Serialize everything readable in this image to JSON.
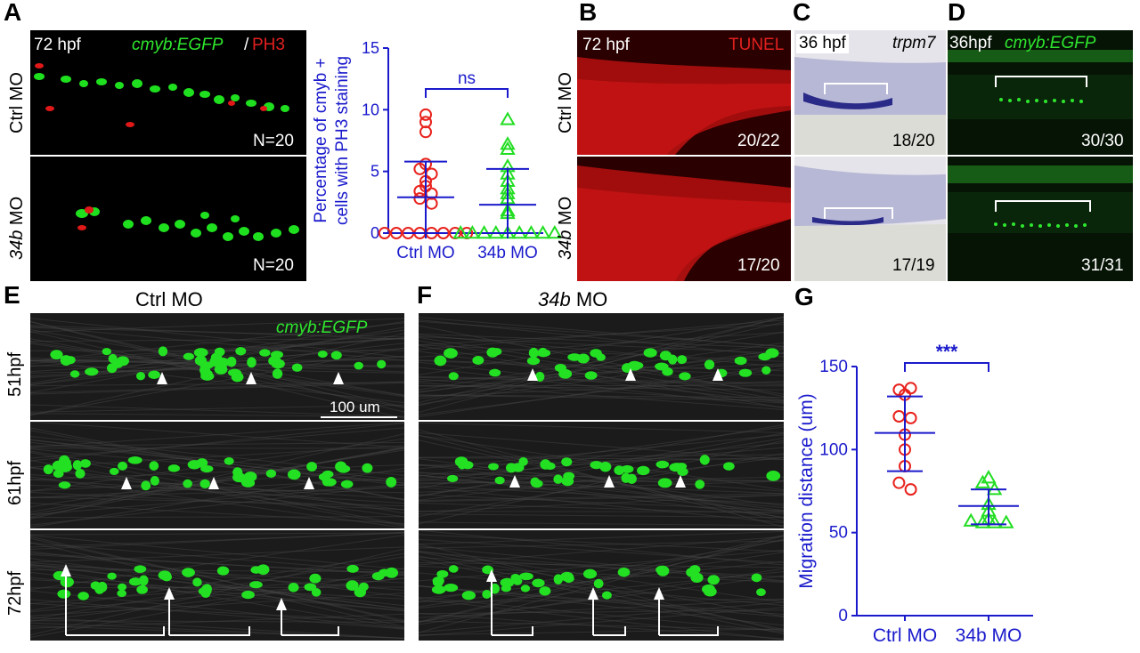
{
  "panels": {
    "A": {
      "letter": "A",
      "time": "72 hpf",
      "marker1": "cmyb:EGFP",
      "slash": "/",
      "marker2": "PH3",
      "row1_label": "Ctrl MO",
      "row2_label_italic": "34b",
      "row2_label_rest": " MO",
      "n1": "N=20",
      "n2": "N=20"
    },
    "B": {
      "letter": "B",
      "time": "72 hpf",
      "stain": "TUNEL",
      "row1_label": "Ctrl MO",
      "row2_label_italic": "34b",
      "row2_label_rest": " MO",
      "count1": "20/22",
      "count2": "17/20"
    },
    "C": {
      "letter": "C",
      "time": "36 hpf",
      "probe": "trpm7",
      "count1": "18/20",
      "count2": "17/19"
    },
    "D": {
      "letter": "D",
      "time": "36hpf",
      "marker": "cmyb:EGFP",
      "count1": "30/30",
      "count2": "31/31"
    },
    "E": {
      "letter": "E",
      "title": "Ctrl MO",
      "marker": "cmyb:EGFP",
      "scale": "100 um",
      "rows": [
        "51hpf",
        "61hpf",
        "72hpf"
      ]
    },
    "F": {
      "letter": "F",
      "title_italic": "34b",
      "title_rest": "  MO"
    },
    "G": {
      "letter": "G"
    }
  },
  "chart_data": [
    {
      "id": "A-plot",
      "type": "scatter",
      "ylabel_line1": "Percentage of cmyb +",
      "ylabel_line2": "cells  with PH3 staining",
      "categories": [
        "Ctrl MO",
        "34b MO"
      ],
      "ylim": [
        0,
        15
      ],
      "yticks": [
        "0",
        "5",
        "10",
        "15"
      ],
      "significance": "ns",
      "colors": {
        "ctrl": "#e8221c",
        "mo": "#22dd22",
        "axis": "#1a1acc",
        "error": "#1a1acc"
      },
      "series": [
        {
          "category": "Ctrl MO",
          "marker": "circle",
          "values": [
            9,
            9.6,
            8.2,
            5.6,
            5.2,
            4.8,
            4.2,
            3.8,
            3.4,
            3.2,
            2.8,
            2.4,
            0,
            0,
            0,
            0,
            0,
            0,
            0,
            0
          ],
          "mean": 2.9,
          "sd_low": 0,
          "sd_high": 5.8
        },
        {
          "category": "34b MO",
          "marker": "triangle",
          "values": [
            9.2,
            7.2,
            6.8,
            5.4,
            4.8,
            4.2,
            3.6,
            3.2,
            2.8,
            1.8,
            1.6,
            0,
            0,
            0,
            0,
            0,
            0,
            0,
            0,
            0
          ],
          "mean": 2.3,
          "sd_low": 0,
          "sd_high": 5.2
        }
      ]
    },
    {
      "id": "G-plot",
      "type": "scatter",
      "ylabel": "Migration distance (um)",
      "categories": [
        "Ctrl MO",
        "34b MO"
      ],
      "ylim": [
        0,
        150
      ],
      "yticks": [
        "0",
        "50",
        "100",
        "150"
      ],
      "significance": "***",
      "colors": {
        "ctrl": "#e8221c",
        "mo": "#22dd22",
        "axis": "#1a1acc",
        "error": "#1a1acc"
      },
      "series": [
        {
          "category": "Ctrl MO",
          "marker": "circle",
          "values": [
            136,
            137,
            133,
            120,
            119,
            109,
            100,
            90,
            80,
            76
          ],
          "mean": 110,
          "sd_low": 87,
          "sd_high": 132
        },
        {
          "category": "34b MO",
          "marker": "triangle",
          "values": [
            83,
            80,
            76,
            67,
            63,
            58,
            57,
            56,
            56,
            56
          ],
          "mean": 66,
          "sd_low": 55,
          "sd_high": 76
        }
      ]
    }
  ]
}
